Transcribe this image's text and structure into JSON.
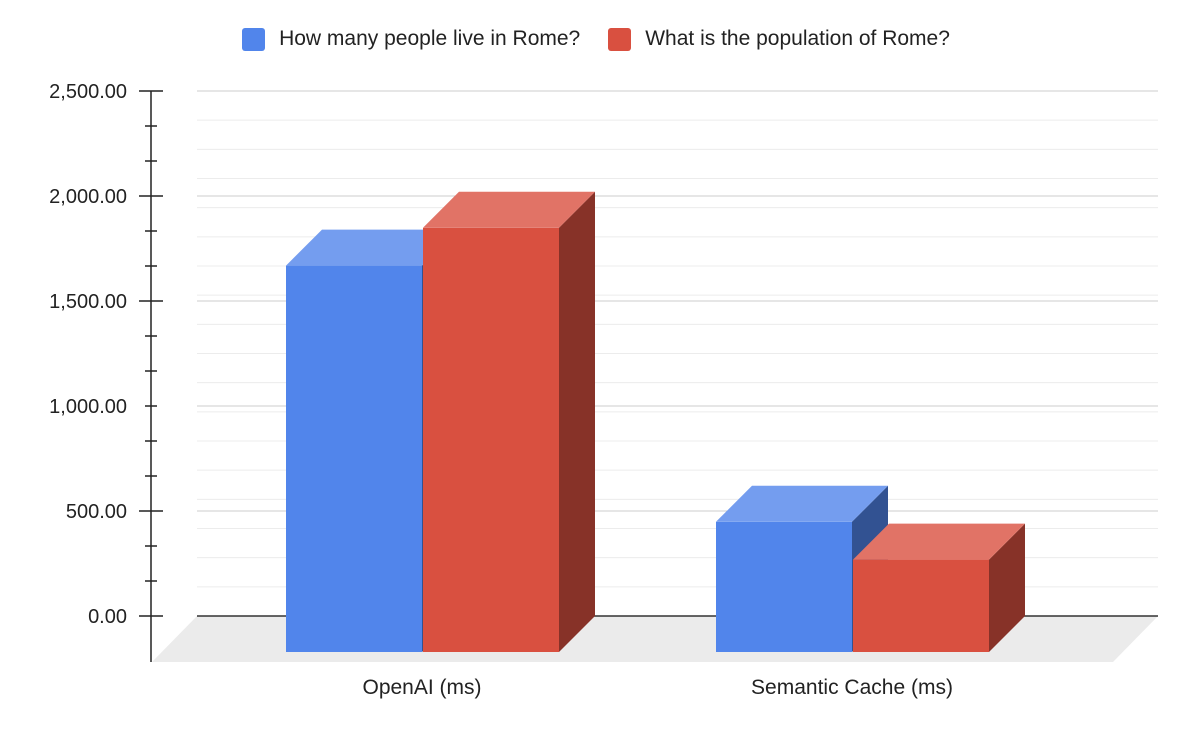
{
  "chart_data": {
    "type": "bar",
    "style": "3d",
    "categories": [
      "OpenAI (ms)",
      "Semantic Cache (ms)"
    ],
    "series": [
      {
        "name": "How many people live in Rome?",
        "color": "#5185EB",
        "values": [
          1840,
          620
        ]
      },
      {
        "name": "What is the population of Rome?",
        "color": "#D95040",
        "values": [
          2020,
          440
        ]
      }
    ],
    "ylim": [
      0,
      2500
    ],
    "yticks": [
      "0.00",
      "500.00",
      "1,000.00",
      "1,500.00",
      "2,000.00",
      "2,500.00"
    ],
    "grid": true,
    "legend_position": "top",
    "title": "",
    "xlabel": "",
    "ylabel": ""
  }
}
